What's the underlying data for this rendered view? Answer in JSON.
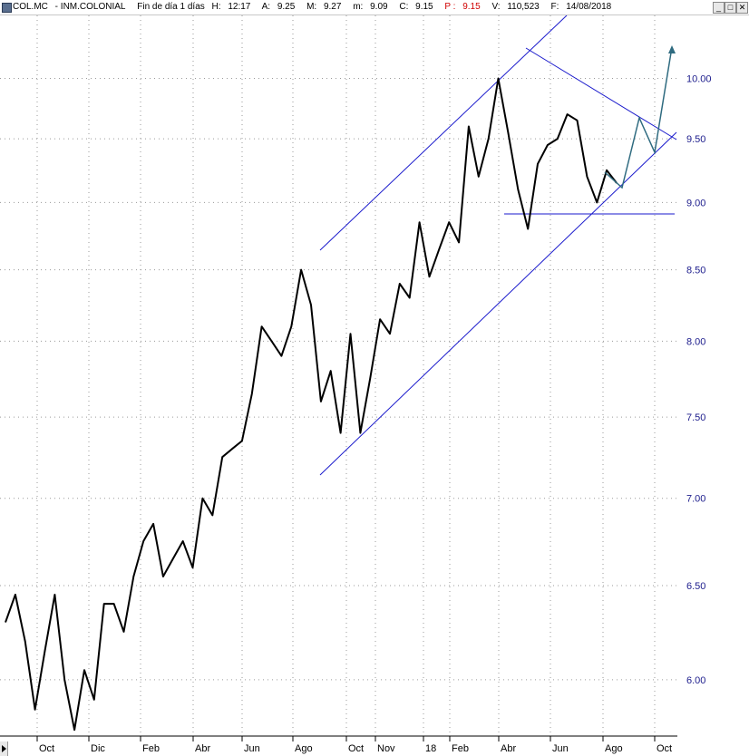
{
  "header": {
    "symbol": "COL.MC",
    "name": "INM.COLONIAL",
    "period": "Fin de día 1 días",
    "h_label": "H:",
    "h_value": "12:17",
    "a_label": "A:",
    "a_value": "9.25",
    "m_label": "M:",
    "m_value": "9.27",
    "lo_label": "m:",
    "lo_value": "9.09",
    "c_label": "C:",
    "c_value": "9.15",
    "p_label": "P :",
    "p_value": "9.15",
    "v_label": "V:",
    "v_value": "110,523",
    "f_label": "F:",
    "f_value": "14/08/2018"
  },
  "window_buttons": {
    "minimize": "_",
    "maximize": "□",
    "close": "✕"
  },
  "colors": {
    "price": "#000000",
    "trendline": "#1a1acc",
    "projection": "#2f6b80",
    "axis_text": "#1c1c8c",
    "grid": "#9a9a9a"
  },
  "chart_data": {
    "type": "line",
    "title": "",
    "xlabel": "",
    "ylabel": "",
    "ylim": [
      5.72,
      10.55
    ],
    "y_scale": "log",
    "y_ticks": [
      "6.00",
      "6.50",
      "7.00",
      "7.50",
      "8.00",
      "8.50",
      "9.00",
      "9.50",
      "10.00"
    ],
    "x_ticks": [
      "Oct",
      "Dic",
      "Feb",
      "Abr",
      "Jun",
      "Ago",
      "Oct",
      "Nov",
      "18",
      "Feb",
      "Abr",
      "Jun",
      "Ago",
      "Oct"
    ],
    "grid": true,
    "series": [
      {
        "values": [
          {
            "x": "2016-09",
            "y": 6.3
          },
          {
            "x": "2016-09",
            "y": 6.45
          },
          {
            "x": "2016-10",
            "y": 6.2
          },
          {
            "x": "2016-10",
            "y": 5.85
          },
          {
            "x": "2016-10",
            "y": 6.15
          },
          {
            "x": "2016-10",
            "y": 6.45
          },
          {
            "x": "2016-11",
            "y": 6.0
          },
          {
            "x": "2016-11",
            "y": 5.75
          },
          {
            "x": "2016-11",
            "y": 6.05
          },
          {
            "x": "2016-12",
            "y": 5.9
          },
          {
            "x": "2016-12",
            "y": 6.4
          },
          {
            "x": "2016-12",
            "y": 6.4
          },
          {
            "x": "2017-01",
            "y": 6.25
          },
          {
            "x": "2017-01",
            "y": 6.55
          },
          {
            "x": "2017-02",
            "y": 6.75
          },
          {
            "x": "2017-02",
            "y": 6.85
          },
          {
            "x": "2017-02",
            "y": 6.55
          },
          {
            "x": "2017-03",
            "y": 6.65
          },
          {
            "x": "2017-03",
            "y": 6.75
          },
          {
            "x": "2017-03",
            "y": 6.6
          },
          {
            "x": "2017-04",
            "y": 7.0
          },
          {
            "x": "2017-04",
            "y": 6.9
          },
          {
            "x": "2017-05",
            "y": 7.25
          },
          {
            "x": "2017-05",
            "y": 7.3
          },
          {
            "x": "2017-05",
            "y": 7.35
          },
          {
            "x": "2017-06",
            "y": 7.65
          },
          {
            "x": "2017-06",
            "y": 8.1
          },
          {
            "x": "2017-07",
            "y": 8.0
          },
          {
            "x": "2017-07",
            "y": 7.9
          },
          {
            "x": "2017-08",
            "y": 8.1
          },
          {
            "x": "2017-08",
            "y": 8.5
          },
          {
            "x": "2017-09",
            "y": 8.25
          },
          {
            "x": "2017-09",
            "y": 7.6
          },
          {
            "x": "2017-09",
            "y": 7.8
          },
          {
            "x": "2017-10",
            "y": 7.4
          },
          {
            "x": "2017-10",
            "y": 8.05
          },
          {
            "x": "2017-10",
            "y": 7.4
          },
          {
            "x": "2017-11",
            "y": 7.75
          },
          {
            "x": "2017-11",
            "y": 8.15
          },
          {
            "x": "2017-12",
            "y": 8.05
          },
          {
            "x": "2017-12",
            "y": 8.4
          },
          {
            "x": "2018-01",
            "y": 8.3
          },
          {
            "x": "2018-01",
            "y": 8.85
          },
          {
            "x": "2018-01",
            "y": 8.45
          },
          {
            "x": "2018-02",
            "y": 8.65
          },
          {
            "x": "2018-02",
            "y": 8.85
          },
          {
            "x": "2018-03",
            "y": 8.7
          },
          {
            "x": "2018-03",
            "y": 9.6
          },
          {
            "x": "2018-04",
            "y": 9.2
          },
          {
            "x": "2018-04",
            "y": 9.5
          },
          {
            "x": "2018-04",
            "y": 10.0
          },
          {
            "x": "2018-05",
            "y": 9.55
          },
          {
            "x": "2018-05",
            "y": 9.1
          },
          {
            "x": "2018-05",
            "y": 8.8
          },
          {
            "x": "2018-06",
            "y": 9.3
          },
          {
            "x": "2018-06",
            "y": 9.45
          },
          {
            "x": "2018-06",
            "y": 9.5
          },
          {
            "x": "2018-07",
            "y": 9.7
          },
          {
            "x": "2018-07",
            "y": 9.65
          },
          {
            "x": "2018-07",
            "y": 9.2
          },
          {
            "x": "2018-08",
            "y": 9.0
          },
          {
            "x": "2018-08",
            "y": 9.25
          },
          {
            "x": "2018-08",
            "y": 9.15
          }
        ]
      }
    ]
  }
}
